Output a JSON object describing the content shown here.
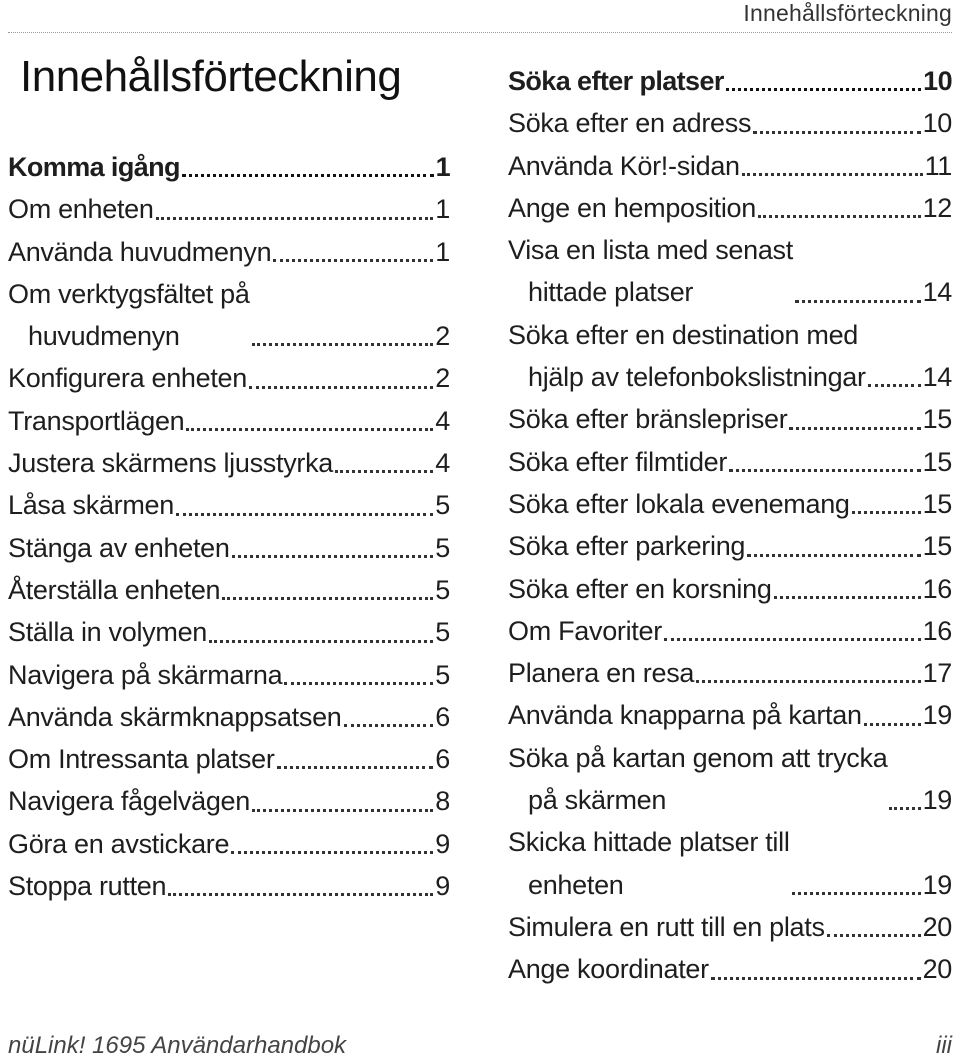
{
  "header": {
    "running_title": "Innehållsförteckning"
  },
  "title": "Innehållsförteckning",
  "left_column": [
    {
      "text": "Komma igång",
      "page": "1",
      "bold": true
    },
    {
      "text": "Om enheten",
      "page": "1"
    },
    {
      "text": "Använda huvudmenyn",
      "page": "1"
    },
    {
      "text": "Om verktygsfältet på",
      "text2": "huvudmenyn",
      "page": "2"
    },
    {
      "text": "Konfigurera enheten",
      "page": "2"
    },
    {
      "text": "Transportlägen",
      "page": "4"
    },
    {
      "text": "Justera skärmens ljusstyrka",
      "page": "4"
    },
    {
      "text": "Låsa skärmen",
      "page": "5"
    },
    {
      "text": "Stänga av enheten",
      "page": "5"
    },
    {
      "text": "Återställa enheten",
      "page": "5"
    },
    {
      "text": "Ställa in volymen",
      "page": "5"
    },
    {
      "text": "Navigera på skärmarna",
      "page": "5"
    },
    {
      "text": "Använda skärmknappsatsen",
      "page": "6"
    },
    {
      "text": "Om Intressanta platser",
      "page": "6"
    },
    {
      "text": "Navigera fågelvägen",
      "page": "8"
    },
    {
      "text": "Göra en avstickare",
      "page": "9"
    },
    {
      "text": "Stoppa rutten",
      "page": "9"
    }
  ],
  "right_column": [
    {
      "text": "Söka efter platser",
      "page": "10",
      "bold": true
    },
    {
      "text": "Söka efter en adress",
      "page": "10"
    },
    {
      "text": "Använda Kör!-sidan",
      "page": "11"
    },
    {
      "text": "Ange en hemposition",
      "page": "12"
    },
    {
      "text": "Visa en lista med senast",
      "text2": "hittade platser",
      "page": "14"
    },
    {
      "text": "Söka efter en destination med",
      "text2": "hjälp av telefonbokslistningar",
      "page": "14"
    },
    {
      "text": "Söka efter bränslepriser",
      "page": "15"
    },
    {
      "text": "Söka efter filmtider",
      "page": "15"
    },
    {
      "text": "Söka efter lokala evenemang",
      "page": "15"
    },
    {
      "text": "Söka efter parkering",
      "page": "15"
    },
    {
      "text": "Söka efter en korsning",
      "page": "16"
    },
    {
      "text": "Om Favoriter",
      "page": "16"
    },
    {
      "text": "Planera en resa",
      "page": "17"
    },
    {
      "text": "Använda knapparna på kartan",
      "page": "19"
    },
    {
      "text": "Söka på kartan genom att trycka",
      "text2": "på skärmen",
      "page": "19"
    },
    {
      "text": "Skicka hittade platser till",
      "text2": "enheten",
      "page": "19"
    },
    {
      "text": "Simulera en rutt till en plats",
      "page": "20"
    },
    {
      "text": "Ange koordinater",
      "page": "20"
    }
  ],
  "footer": {
    "product": "nüLink! 1695 Användarhandbok",
    "page_number": "iii"
  }
}
